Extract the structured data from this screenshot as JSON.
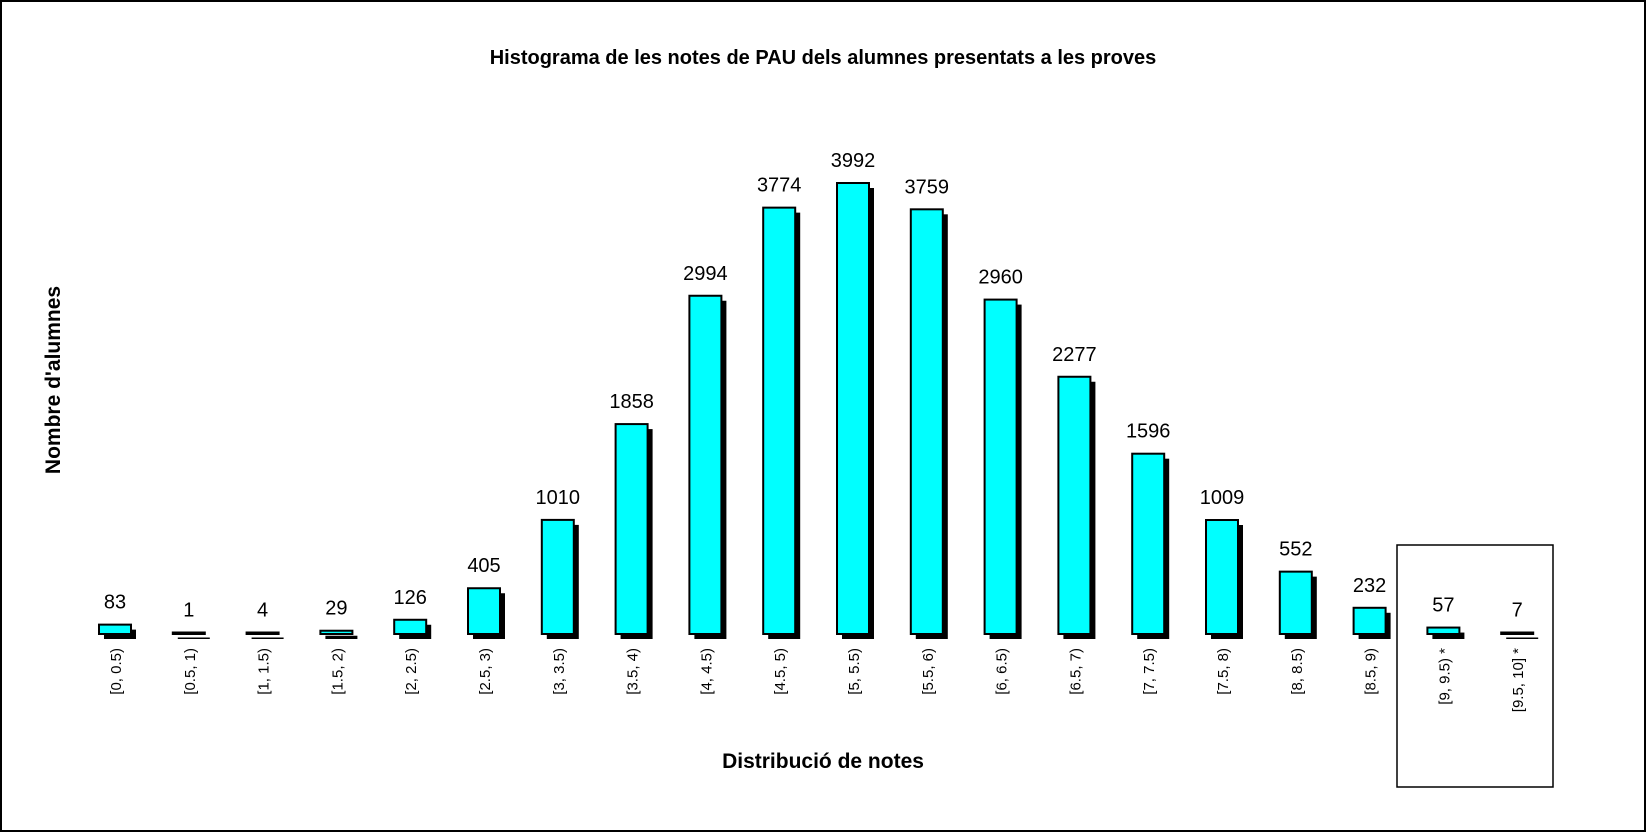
{
  "chart_data": {
    "type": "bar",
    "title": "Histograma de les notes de PAU dels alumnes presentats a les proves",
    "x_label": "Distribució de notes",
    "y_label": "Nombre d'alumnes",
    "categories": [
      "[0, 0.5)",
      "[0.5, 1)",
      "[1, 1.5)",
      "[1.5, 2)",
      "[2, 2.5)",
      "[2.5, 3)",
      "[3, 3.5)",
      "[3.5, 4)",
      "[4, 4.5)",
      "[4.5, 5)",
      "[5, 5.5)",
      "[5.5, 6)",
      "[6, 6.5)",
      "[6.5, 7)",
      "[7, 7.5)",
      "[7.5, 8)",
      "[8, 8.5)",
      "[8.5, 9)",
      "[9, 9.5) *",
      "[9.5, 10] *"
    ],
    "values": [
      83,
      1,
      4,
      29,
      126,
      405,
      1010,
      1858,
      2994,
      3774,
      3992,
      3759,
      2960,
      2277,
      1596,
      1009,
      552,
      232,
      57,
      7
    ],
    "color": "#00ffff"
  }
}
